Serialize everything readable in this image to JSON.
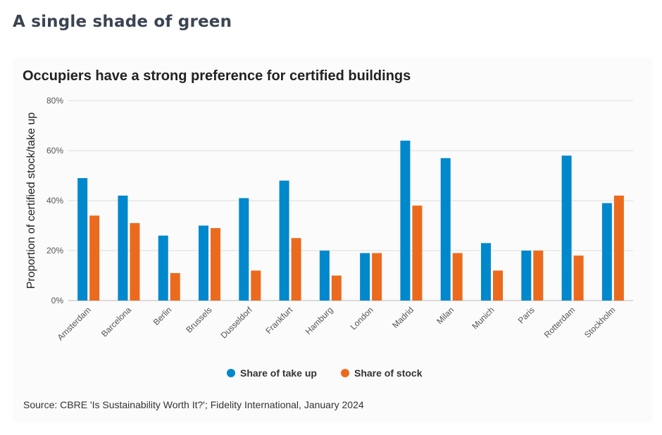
{
  "page": {
    "heading": "A single shade of green",
    "source": "Source: CBRE 'Is Sustainability Worth It?'; Fidelity International, January 2024"
  },
  "colors": {
    "take_up": "#0088cc",
    "stock": "#ec6a1e",
    "grid": "#dddddd",
    "axis_text": "#555555"
  },
  "chart_data": {
    "type": "bar",
    "title": "Occupiers have a strong preference for certified buildings",
    "xlabel": "",
    "ylabel": "Proportion of certified stock/take up",
    "ylim": [
      0,
      80
    ],
    "yticks": [
      0,
      20,
      40,
      60,
      80
    ],
    "ytick_labels": [
      "0%",
      "20%",
      "40%",
      "60%",
      "80%"
    ],
    "grid": true,
    "legend_position": "bottom",
    "categories": [
      "Amsterdam",
      "Barcelona",
      "Berlin",
      "Brussels",
      "Dusseldorf",
      "Frankfurt",
      "Hamburg",
      "London",
      "Madrid",
      "Milan",
      "Munich",
      "Paris",
      "Rotterdam",
      "Stockholm"
    ],
    "series": [
      {
        "name": "Share of take up",
        "color_key": "take_up",
        "values": [
          49,
          42,
          26,
          30,
          41,
          48,
          20,
          19,
          64,
          57,
          23,
          20,
          58,
          39
        ]
      },
      {
        "name": "Share of stock",
        "color_key": "stock",
        "values": [
          34,
          31,
          11,
          29,
          12,
          25,
          10,
          19,
          38,
          19,
          12,
          20,
          18,
          42
        ]
      }
    ]
  }
}
